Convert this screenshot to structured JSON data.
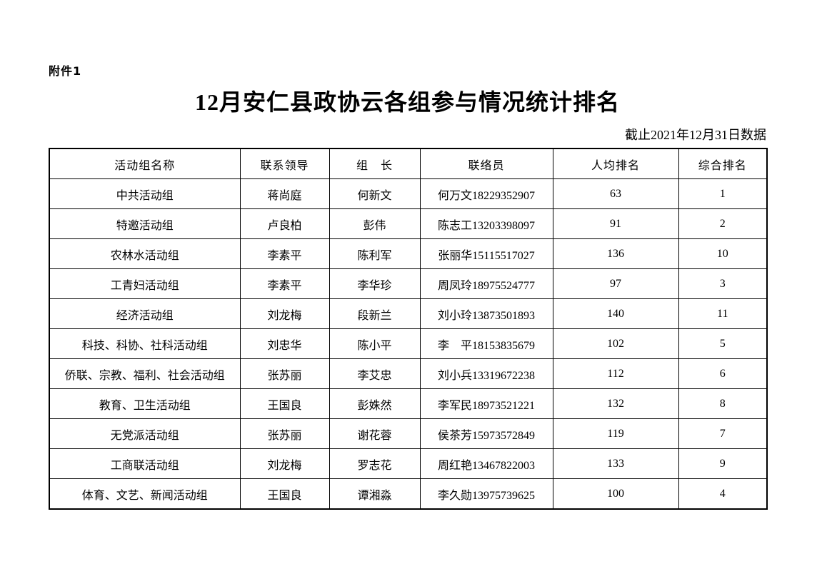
{
  "page": {
    "attachment_label": "附件1",
    "title": "12月安仁县政协云各组参与情况统计排名",
    "data_note": "截止2021年12月31日数据"
  },
  "table": {
    "headers": [
      "活动组名称",
      "联系领导",
      "组　长",
      "联络员",
      "人均排名",
      "综合排名"
    ],
    "rows": [
      [
        "中共活动组",
        "蒋尚庭",
        "何新文",
        "何万文18229352907",
        "63",
        "1"
      ],
      [
        "特邀活动组",
        "卢良柏",
        "彭伟",
        "陈志工13203398097",
        "91",
        "2"
      ],
      [
        "农林水活动组",
        "李素平",
        "陈利军",
        "张丽华15115517027",
        "136",
        "10"
      ],
      [
        "工青妇活动组",
        "李素平",
        "李华珍",
        "周凤玲18975524777",
        "97",
        "3"
      ],
      [
        "经济活动组",
        "刘龙梅",
        "段新兰",
        "刘小玲13873501893",
        "140",
        "11"
      ],
      [
        "科技、科协、社科活动组",
        "刘忠华",
        "陈小平",
        "李　平18153835679",
        "102",
        "5"
      ],
      [
        "侨联、宗教、福利、社会活动组",
        "张苏丽",
        "李艾忠",
        "刘小兵13319672238",
        "112",
        "6"
      ],
      [
        "教育、卫生活动组",
        "王国良",
        "彭姝然",
        "李军民18973521221",
        "132",
        "8"
      ],
      [
        "无党派活动组",
        "张苏丽",
        "谢花蓉",
        "侯茶芳15973572849",
        "119",
        "7"
      ],
      [
        "工商联活动组",
        "刘龙梅",
        "罗志花",
        "周红艳13467822003",
        "133",
        "9"
      ],
      [
        "体育、文艺、新闻活动组",
        "王国良",
        "谭湘淼",
        "李久勋13975739625",
        "100",
        "4"
      ]
    ]
  }
}
